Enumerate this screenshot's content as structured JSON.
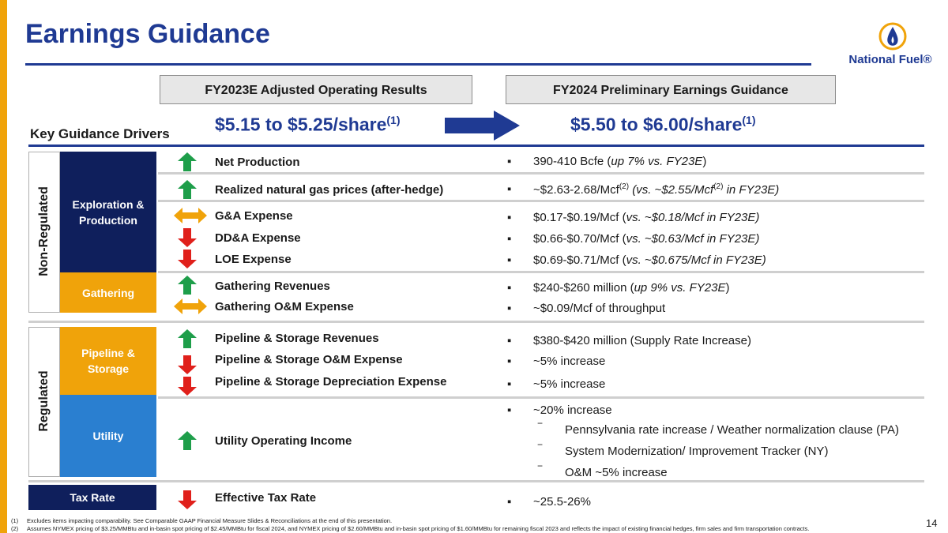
{
  "title": "Earnings Guidance",
  "logo": {
    "text": "National Fuel®",
    "icon": "flame-drop-icon"
  },
  "columns": {
    "left_header": "FY2023E Adjusted Operating Results",
    "right_header": "FY2024 Preliminary Earnings Guidance",
    "left_range": "$5.15 to $5.25/share",
    "left_range_sup": "(1)",
    "right_range": "$5.50 to $6.00/share",
    "right_range_sup": "(1)"
  },
  "key_drivers_label": "Key Guidance Drivers",
  "groups": {
    "non_regulated": "Non-Regulated",
    "regulated": "Regulated"
  },
  "segments": {
    "exploration": "Exploration &\nProduction",
    "gathering": "Gathering",
    "pipeline": "Pipeline &\nStorage",
    "utility": "Utility",
    "tax": "Tax Rate"
  },
  "drivers": [
    {
      "label": "Net Production",
      "arrow": "up"
    },
    {
      "label": "Realized natural gas prices (after-hedge)",
      "arrow": "up"
    },
    {
      "label": "G&A Expense",
      "arrow": "both"
    },
    {
      "label": "DD&A Expense",
      "arrow": "down"
    },
    {
      "label": "LOE Expense",
      "arrow": "down"
    },
    {
      "label": "Gathering Revenues",
      "arrow": "up"
    },
    {
      "label": "Gathering O&M Expense",
      "arrow": "both"
    },
    {
      "label": "Pipeline & Storage Revenues",
      "arrow": "up"
    },
    {
      "label": "Pipeline & Storage O&M Expense",
      "arrow": "down"
    },
    {
      "label": "Pipeline & Storage Depreciation Expense",
      "arrow": "down"
    },
    {
      "label": "Utility Operating Income",
      "arrow": "up"
    },
    {
      "label": "Effective Tax Rate",
      "arrow": "down"
    }
  ],
  "guidance": {
    "net_production": {
      "a": "390-410 Bcfe (",
      "b": "up 7% vs. FY23E",
      "c": ")"
    },
    "prices": {
      "a": "~$2.63-2.68/Mcf",
      "sup1": "(2)",
      "b": " (vs. ~$2.55/Mcf",
      "sup2": "(2)",
      "c": " in FY23E)"
    },
    "ga": {
      "a": "$0.17-$0.19/Mcf (",
      "b": "vs. ~$0.18/Mcf in FY23E)"
    },
    "dda": {
      "a": "$0.66-$0.70/Mcf  (",
      "b": "vs. ~$0.63/Mcf in FY23E)"
    },
    "loe": {
      "a": "$0.69-$0.71/Mcf  (",
      "b": "vs. ~$0.675/Mcf in FY23E)"
    },
    "gathering_rev": {
      "a": "$240-$260 million (",
      "b": "up 9% vs. FY23E",
      "c": ")"
    },
    "gathering_om": "~$0.09/Mcf of throughput",
    "pipeline_rev": "$380-$420 million (Supply Rate Increase)",
    "pipeline_om": "~5% increase",
    "pipeline_dep": "~5% increase",
    "utility": "~20% increase",
    "utility_subs": [
      "Pennsylvania rate increase / Weather normalization clause (PA)",
      "System Modernization/ Improvement Tracker (NY)",
      "O&M ~5% increase"
    ],
    "sub_dash": "−",
    "tax": "~25.5-26%"
  },
  "footnotes": [
    {
      "num": "(1)",
      "text": "Excludes items impacting comparability.  See Comparable GAAP Financial Measure Slides & Reconciliations at the end of this presentation."
    },
    {
      "num": "(2)",
      "text": "Assumes NYMEX pricing of $3.25/MMBtu and in-basin spot pricing of $2.45/MMBtu for fiscal 2024, and NYMEX pricing of $2.60/MMBtu and in-basin spot pricing of $1.60/MMBtu for remaining fiscal 2023 and reflects the impact of existing financial hedges, firm sales and firm transportation contracts."
    }
  ],
  "page_number": "14",
  "colors": {
    "title_blue": "#1F3A93",
    "navy": "#0F1F5C",
    "orange": "#F0A30A",
    "light_blue": "#2A7FD0",
    "up_green": "#1E9E4A",
    "down_red": "#E0201B",
    "neutral_orange": "#F0A30A"
  }
}
